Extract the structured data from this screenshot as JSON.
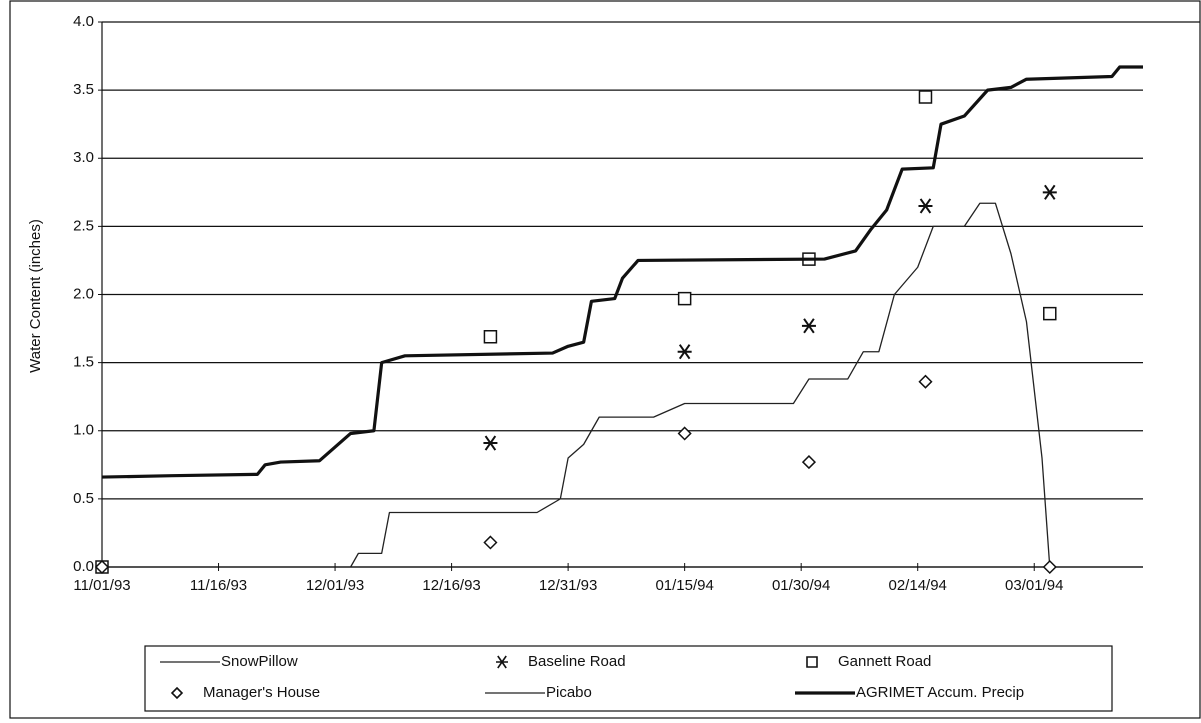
{
  "chart_data": {
    "type": "line",
    "ylabel": "Water Content (inches)",
    "xlim": [
      "11/01/93",
      "03/15/94"
    ],
    "xticks": [
      "11/01/93",
      "11/16/93",
      "12/01/93",
      "12/16/93",
      "12/31/93",
      "01/15/94",
      "01/30/94",
      "02/14/94",
      "03/01/94"
    ],
    "ylim": [
      0,
      4
    ],
    "yticks": [
      {
        "value": 0,
        "label": "0.0"
      },
      {
        "value": 0.5,
        "label": "0.5"
      },
      {
        "value": 1,
        "label": "1.0"
      },
      {
        "value": 1.5,
        "label": "1.5"
      },
      {
        "value": 2,
        "label": "2.0"
      },
      {
        "value": 2.5,
        "label": "2.5"
      },
      {
        "value": 3,
        "label": "3.0"
      },
      {
        "value": 3.5,
        "label": "3.5"
      },
      {
        "value": 4,
        "label": "4.0"
      }
    ],
    "grid": true,
    "legend": "bottom",
    "series": [
      {
        "name": "SnowPillow",
        "type": "line",
        "color": "#222",
        "width": 1.3,
        "x": [
          "12/03/93",
          "12/04/93",
          "12/07/93",
          "12/08/93",
          "12/27/93",
          "12/30/93",
          "12/31/93",
          "01/02/94",
          "01/04/94",
          "01/11/94",
          "01/15/94",
          "01/29/94",
          "01/31/94",
          "02/05/94",
          "02/07/94",
          "02/09/94",
          "02/11/94",
          "02/14/94",
          "02/16/94",
          "02/20/94",
          "02/22/94",
          "02/24/94",
          "02/26/94",
          "02/28/94",
          "03/02/94",
          "03/03/94"
        ],
        "values": [
          0,
          0.1,
          0.1,
          0.4,
          0.4,
          0.5,
          0.8,
          0.9,
          1.1,
          1.1,
          1.2,
          1.2,
          1.38,
          1.38,
          1.58,
          1.58,
          2.0,
          2.2,
          2.5,
          2.5,
          2.67,
          2.67,
          2.3,
          1.8,
          0.8,
          0
        ]
      },
      {
        "name": "Baseline Road",
        "type": "scatter",
        "marker": "asterisk",
        "color": "#111",
        "x": [
          "12/21/93",
          "01/15/94",
          "01/31/94",
          "02/15/94",
          "03/03/94"
        ],
        "values": [
          0.91,
          1.58,
          1.77,
          2.65,
          2.75
        ]
      },
      {
        "name": "Gannett Road",
        "type": "scatter",
        "marker": "square",
        "color": "#111",
        "x": [
          "11/01/93",
          "12/21/93",
          "01/15/94",
          "01/31/94",
          "02/15/94",
          "03/03/94"
        ],
        "values": [
          0,
          1.69,
          1.97,
          2.26,
          3.45,
          1.86
        ]
      },
      {
        "name": "Manager's House",
        "type": "scatter",
        "marker": "diamond",
        "color": "#111",
        "x": [
          "11/01/93",
          "12/21/93",
          "01/15/94",
          "01/31/94",
          "02/15/94",
          "03/03/94"
        ],
        "values": [
          0,
          0.18,
          0.98,
          0.77,
          1.36,
          0
        ]
      },
      {
        "name": "Picabo",
        "type": "line",
        "color": "#222",
        "width": 1.3,
        "x": [],
        "values": []
      },
      {
        "name": "AGRIMET Accum. Precip",
        "type": "line",
        "color": "#111",
        "width": 3.2,
        "x": [
          "11/01/93",
          "11/10/93",
          "11/21/93",
          "11/22/93",
          "11/24/93",
          "11/29/93",
          "12/01/93",
          "12/03/93",
          "12/06/93",
          "12/07/93",
          "12/10/93",
          "12/29/93",
          "12/31/93",
          "01/02/94",
          "01/03/94",
          "01/06/94",
          "01/07/94",
          "01/09/94",
          "02/02/94",
          "02/06/94",
          "02/08/94",
          "02/10/94",
          "02/12/94",
          "02/16/94",
          "02/17/94",
          "02/20/94",
          "02/23/94",
          "02/26/94",
          "02/28/94",
          "03/11/94",
          "03/12/94",
          "03/15/94"
        ],
        "values": [
          0.66,
          0.67,
          0.68,
          0.75,
          0.77,
          0.78,
          0.88,
          0.98,
          1.0,
          1.5,
          1.55,
          1.57,
          1.62,
          1.65,
          1.95,
          1.97,
          2.12,
          2.25,
          2.26,
          2.32,
          2.48,
          2.62,
          2.92,
          2.93,
          3.25,
          3.31,
          3.5,
          3.52,
          3.58,
          3.6,
          3.67,
          3.67
        ]
      }
    ]
  }
}
